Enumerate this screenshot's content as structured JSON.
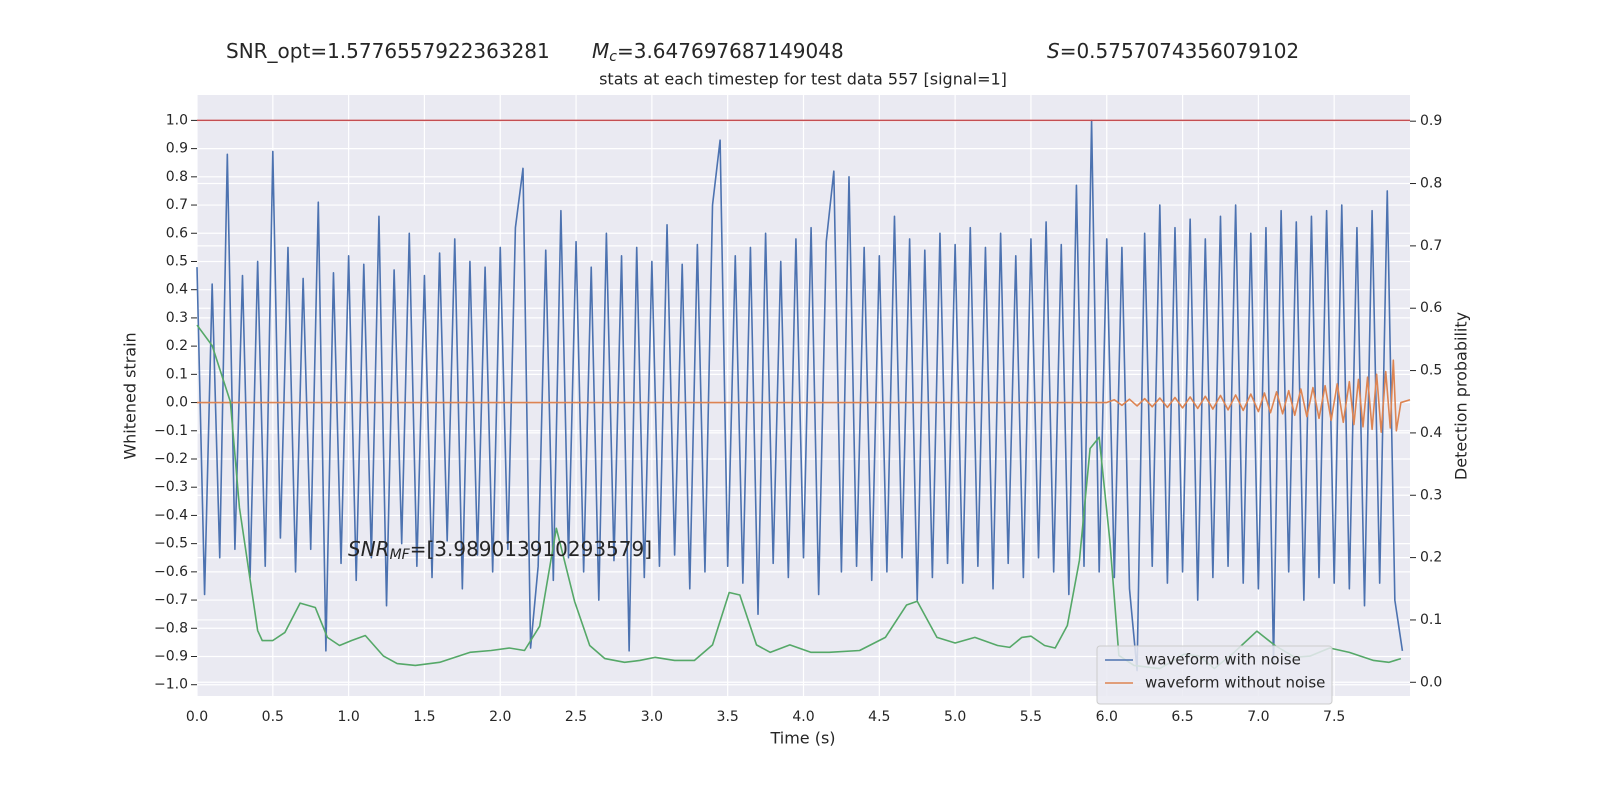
{
  "chart_data": {
    "type": "line",
    "titles": [
      {
        "text": "SNR_opt=1.5776557922363281"
      },
      {
        "symbol": "M",
        "sub": "c",
        "text": "=3.647697687149048"
      },
      {
        "symbol": "S",
        "text": "=0.5757074356079102"
      }
    ],
    "subtitle": "stats at each timestep for test data 557 [signal=1]",
    "annotation": {
      "symbol": "SNR",
      "sub": "MF",
      "text": "=[3.989013910293579]"
    },
    "xlabel": "Time (s)",
    "ylabel": "Whitened strain",
    "y2label": "Detection probability",
    "xlim": [
      0,
      8
    ],
    "ylim": [
      -1.04,
      1.09
    ],
    "y2lim": [
      -0.022,
      0.942
    ],
    "grid": true,
    "legend": "lower right",
    "xticks": [
      {
        "value": 0,
        "label": "0.0"
      },
      0.5,
      {
        "value": 1,
        "label": "1.0"
      },
      1.5,
      {
        "value": 2,
        "label": "2.0"
      },
      2.5,
      {
        "value": 3,
        "label": "3.0"
      },
      3.5,
      {
        "value": 4,
        "label": "4.0"
      },
      4.5,
      {
        "value": 5,
        "label": "5.0"
      },
      5.5,
      {
        "value": 6,
        "label": "6.0"
      },
      6.5,
      {
        "value": 7,
        "label": "7.0"
      },
      7.5
    ],
    "yticks": [
      {
        "value": -1,
        "label": "−1.0"
      },
      {
        "value": -0.9,
        "label": "−0.9"
      },
      {
        "value": -0.8,
        "label": "−0.8"
      },
      {
        "value": -0.7,
        "label": "−0.7"
      },
      {
        "value": -0.6,
        "label": "−0.6"
      },
      {
        "value": -0.5,
        "label": "−0.5"
      },
      {
        "value": -0.4,
        "label": "−0.4"
      },
      {
        "value": -0.3,
        "label": "−0.3"
      },
      {
        "value": -0.2,
        "label": "−0.2"
      },
      {
        "value": -0.1,
        "label": "−0.1"
      },
      {
        "value": 0,
        "label": "0.0"
      },
      0.1,
      0.2,
      0.3,
      0.4,
      0.5,
      0.6,
      0.7,
      0.8,
      0.9,
      {
        "value": 1,
        "label": "1.0"
      }
    ],
    "y2ticks": [
      {
        "value": 0,
        "label": "0.0"
      },
      0.1,
      0.2,
      0.3,
      0.4,
      0.5,
      0.6,
      0.7,
      0.8,
      0.9
    ],
    "hline": {
      "value": 1,
      "color": "#c44e52"
    },
    "series": [
      {
        "name": "waveform with noise",
        "color": "#4c72b0",
        "x": [
          0,
          0.05,
          0.1,
          0.15,
          0.2,
          0.25,
          0.3,
          0.35,
          0.4,
          0.45,
          0.5,
          0.55,
          0.6,
          0.65,
          0.7,
          0.75,
          0.8,
          0.85,
          0.9,
          0.95,
          1,
          1.05,
          1.1,
          1.15,
          1.2,
          1.25,
          1.3,
          1.35,
          1.4,
          1.45,
          1.5,
          1.55,
          1.6,
          1.65,
          1.7,
          1.75,
          1.8,
          1.85,
          1.9,
          1.95,
          2,
          2.05,
          2.1,
          2.15,
          2.2,
          2.25,
          2.3,
          2.35,
          2.4,
          2.45,
          2.5,
          2.55,
          2.6,
          2.65,
          2.7,
          2.75,
          2.8,
          2.85,
          2.9,
          2.95,
          3,
          3.05,
          3.1,
          3.15,
          3.2,
          3.25,
          3.3,
          3.35,
          3.4,
          3.45,
          3.5,
          3.55,
          3.6,
          3.65,
          3.7,
          3.75,
          3.8,
          3.85,
          3.9,
          3.95,
          4,
          4.05,
          4.1,
          4.15,
          4.2,
          4.25,
          4.3,
          4.35,
          4.4,
          4.45,
          4.5,
          4.55,
          4.6,
          4.65,
          4.7,
          4.75,
          4.8,
          4.85,
          4.9,
          4.95,
          5,
          5.05,
          5.1,
          5.15,
          5.2,
          5.25,
          5.3,
          5.35,
          5.4,
          5.45,
          5.5,
          5.55,
          5.6,
          5.65,
          5.7,
          5.75,
          5.8,
          5.85,
          5.9,
          5.95,
          6,
          6.05,
          6.1,
          6.15,
          6.2,
          6.25,
          6.3,
          6.35,
          6.4,
          6.45,
          6.5,
          6.55,
          6.6,
          6.65,
          6.7,
          6.75,
          6.8,
          6.85,
          6.9,
          6.95,
          7,
          7.05,
          7.1,
          7.15,
          7.2,
          7.25,
          7.3,
          7.35,
          7.4,
          7.45,
          7.5,
          7.55,
          7.6,
          7.65,
          7.7,
          7.75,
          7.8,
          7.85,
          7.9,
          7.95
        ],
        "values": [
          0.48,
          -0.68,
          0.42,
          -0.55,
          0.88,
          -0.52,
          0.45,
          -0.62,
          0.5,
          -0.58,
          0.89,
          -0.48,
          0.55,
          -0.6,
          0.44,
          -0.52,
          0.71,
          -0.88,
          0.46,
          -0.57,
          0.52,
          -0.63,
          0.49,
          -0.55,
          0.66,
          -0.72,
          0.47,
          -0.5,
          0.6,
          -0.58,
          0.45,
          -0.62,
          0.53,
          -0.49,
          0.58,
          -0.66,
          0.5,
          -0.54,
          0.48,
          -0.6,
          0.55,
          -0.52,
          0.62,
          0.83,
          -0.87,
          -0.58,
          0.54,
          -0.63,
          0.68,
          -0.55,
          0.57,
          -0.6,
          0.48,
          -0.7,
          0.6,
          -0.56,
          0.52,
          -0.88,
          0.55,
          -0.62,
          0.5,
          -0.58,
          0.63,
          -0.54,
          0.49,
          -0.66,
          0.56,
          -0.6,
          0.7,
          0.93,
          -0.58,
          0.52,
          -0.64,
          0.55,
          -0.75,
          0.6,
          -0.57,
          0.5,
          -0.62,
          0.58,
          -0.55,
          0.62,
          -0.68,
          0.57,
          0.82,
          -0.6,
          0.8,
          -0.58,
          0.55,
          -0.63,
          0.52,
          -0.6,
          0.66,
          -0.55,
          0.58,
          -0.7,
          0.54,
          -0.62,
          0.6,
          -0.57,
          0.56,
          -0.64,
          0.62,
          -0.58,
          0.55,
          -0.66,
          0.6,
          -0.57,
          0.52,
          -0.62,
          0.58,
          -0.55,
          0.64,
          -0.6,
          0.56,
          -0.68,
          0.77,
          -0.58,
          1.0,
          -0.6,
          0.58,
          -0.62,
          0.55,
          -0.66,
          -0.95,
          0.6,
          -0.58,
          0.7,
          -0.64,
          0.62,
          -0.6,
          0.65,
          -0.7,
          0.58,
          -0.62,
          0.66,
          -0.58,
          0.7,
          -0.64,
          0.6,
          -0.66,
          0.62,
          -0.92,
          0.68,
          -0.6,
          0.64,
          -0.7,
          0.66,
          -0.62,
          0.68,
          -0.64,
          0.7,
          -0.66,
          0.62,
          -0.72,
          0.68,
          -0.64,
          0.75,
          -0.7,
          -0.88
        ]
      },
      {
        "name": "waveform without noise",
        "color": "#dd8452",
        "x": [
          0,
          2,
          4,
          5.5,
          6,
          6.05,
          6.1,
          6.15,
          6.2,
          6.25,
          6.3,
          6.35,
          6.4,
          6.45,
          6.5,
          6.55,
          6.6,
          6.65,
          6.7,
          6.75,
          6.8,
          6.85,
          6.9,
          6.95,
          7,
          7.04,
          7.08,
          7.12,
          7.16,
          7.2,
          7.24,
          7.28,
          7.32,
          7.36,
          7.4,
          7.44,
          7.48,
          7.52,
          7.56,
          7.6,
          7.63,
          7.66,
          7.69,
          7.72,
          7.75,
          7.78,
          7.81,
          7.84,
          7.87,
          7.89,
          7.91,
          7.94,
          8
        ],
        "values": [
          0,
          0,
          0,
          0,
          0,
          0.01,
          -0.01,
          0.012,
          -0.012,
          0.014,
          -0.015,
          0.016,
          -0.017,
          0.018,
          -0.019,
          0.02,
          -0.021,
          0.022,
          -0.023,
          0.025,
          -0.026,
          0.027,
          -0.028,
          0.03,
          -0.032,
          0.034,
          -0.036,
          0.038,
          -0.04,
          0.042,
          -0.045,
          0.048,
          -0.05,
          0.053,
          -0.056,
          0.06,
          -0.063,
          0.066,
          -0.07,
          0.074,
          -0.078,
          0.082,
          -0.086,
          0.09,
          -0.095,
          0.1,
          -0.105,
          0.11,
          -0.09,
          0.15,
          -0.1,
          0,
          0.01
        ]
      },
      {
        "color": "#55a868",
        "axis": "y2",
        "x": [
          0,
          0.1,
          0.22,
          0.28,
          0.4,
          0.43,
          0.5,
          0.58,
          0.68,
          0.78,
          0.86,
          0.94,
          1.02,
          1.11,
          1.23,
          1.32,
          1.44,
          1.6,
          1.8,
          1.94,
          2.06,
          2.16,
          2.26,
          2.37,
          2.49,
          2.59,
          2.69,
          2.82,
          2.92,
          3.02,
          3.15,
          3.28,
          3.4,
          3.51,
          3.58,
          3.69,
          3.78,
          3.91,
          4.05,
          4.17,
          4.37,
          4.54,
          4.68,
          4.75,
          4.88,
          5,
          5.13,
          5.28,
          5.36,
          5.44,
          5.5,
          5.59,
          5.66,
          5.74,
          5.82,
          5.89,
          5.95,
          6.02,
          6.08,
          6.18,
          6.35,
          6.51,
          6.61,
          6.71,
          6.84,
          6.99,
          7.11,
          7.24,
          7.34,
          7.47,
          7.6,
          7.76,
          7.86,
          7.94
        ],
        "values": [
          0.573,
          0.54,
          0.45,
          0.28,
          0.083,
          0.067,
          0.067,
          0.08,
          0.127,
          0.12,
          0.072,
          0.059,
          0.067,
          0.075,
          0.042,
          0.03,
          0.027,
          0.032,
          0.048,
          0.051,
          0.055,
          0.051,
          0.09,
          0.247,
          0.13,
          0.059,
          0.038,
          0.032,
          0.035,
          0.04,
          0.035,
          0.035,
          0.06,
          0.144,
          0.14,
          0.06,
          0.048,
          0.06,
          0.048,
          0.048,
          0.051,
          0.072,
          0.124,
          0.13,
          0.072,
          0.063,
          0.072,
          0.059,
          0.056,
          0.072,
          0.074,
          0.059,
          0.055,
          0.091,
          0.196,
          0.375,
          0.393,
          0.228,
          0.043,
          0.027,
          0.022,
          0.045,
          0.042,
          0.022,
          0.048,
          0.082,
          0.059,
          0.04,
          0.042,
          0.055,
          0.048,
          0.035,
          0.032,
          0.038
        ]
      }
    ]
  }
}
